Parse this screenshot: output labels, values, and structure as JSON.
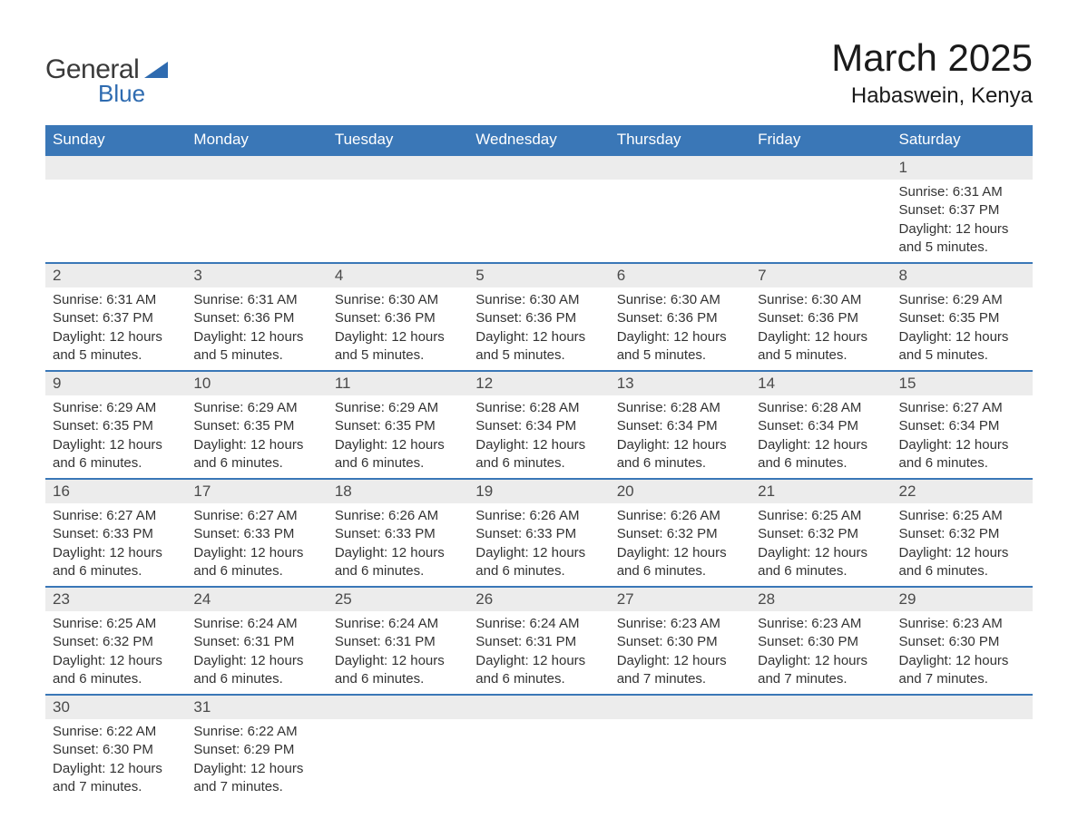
{
  "logo": {
    "line1": "General",
    "line2": "Blue"
  },
  "title": "March 2025",
  "location": "Habaswein, Kenya",
  "header_bg": "#3a77b7",
  "header_fg": "#ffffff",
  "daynum_bg": "#ececec",
  "row_border": "#3a77b7",
  "text_color": "#333333",
  "weekdays": [
    "Sunday",
    "Monday",
    "Tuesday",
    "Wednesday",
    "Thursday",
    "Friday",
    "Saturday"
  ],
  "weeks": [
    [
      null,
      null,
      null,
      null,
      null,
      null,
      {
        "n": "1",
        "sr": "Sunrise: 6:31 AM",
        "ss": "Sunset: 6:37 PM",
        "dl": "Daylight: 12 hours and 5 minutes."
      }
    ],
    [
      {
        "n": "2",
        "sr": "Sunrise: 6:31 AM",
        "ss": "Sunset: 6:37 PM",
        "dl": "Daylight: 12 hours and 5 minutes."
      },
      {
        "n": "3",
        "sr": "Sunrise: 6:31 AM",
        "ss": "Sunset: 6:36 PM",
        "dl": "Daylight: 12 hours and 5 minutes."
      },
      {
        "n": "4",
        "sr": "Sunrise: 6:30 AM",
        "ss": "Sunset: 6:36 PM",
        "dl": "Daylight: 12 hours and 5 minutes."
      },
      {
        "n": "5",
        "sr": "Sunrise: 6:30 AM",
        "ss": "Sunset: 6:36 PM",
        "dl": "Daylight: 12 hours and 5 minutes."
      },
      {
        "n": "6",
        "sr": "Sunrise: 6:30 AM",
        "ss": "Sunset: 6:36 PM",
        "dl": "Daylight: 12 hours and 5 minutes."
      },
      {
        "n": "7",
        "sr": "Sunrise: 6:30 AM",
        "ss": "Sunset: 6:36 PM",
        "dl": "Daylight: 12 hours and 5 minutes."
      },
      {
        "n": "8",
        "sr": "Sunrise: 6:29 AM",
        "ss": "Sunset: 6:35 PM",
        "dl": "Daylight: 12 hours and 5 minutes."
      }
    ],
    [
      {
        "n": "9",
        "sr": "Sunrise: 6:29 AM",
        "ss": "Sunset: 6:35 PM",
        "dl": "Daylight: 12 hours and 6 minutes."
      },
      {
        "n": "10",
        "sr": "Sunrise: 6:29 AM",
        "ss": "Sunset: 6:35 PM",
        "dl": "Daylight: 12 hours and 6 minutes."
      },
      {
        "n": "11",
        "sr": "Sunrise: 6:29 AM",
        "ss": "Sunset: 6:35 PM",
        "dl": "Daylight: 12 hours and 6 minutes."
      },
      {
        "n": "12",
        "sr": "Sunrise: 6:28 AM",
        "ss": "Sunset: 6:34 PM",
        "dl": "Daylight: 12 hours and 6 minutes."
      },
      {
        "n": "13",
        "sr": "Sunrise: 6:28 AM",
        "ss": "Sunset: 6:34 PM",
        "dl": "Daylight: 12 hours and 6 minutes."
      },
      {
        "n": "14",
        "sr": "Sunrise: 6:28 AM",
        "ss": "Sunset: 6:34 PM",
        "dl": "Daylight: 12 hours and 6 minutes."
      },
      {
        "n": "15",
        "sr": "Sunrise: 6:27 AM",
        "ss": "Sunset: 6:34 PM",
        "dl": "Daylight: 12 hours and 6 minutes."
      }
    ],
    [
      {
        "n": "16",
        "sr": "Sunrise: 6:27 AM",
        "ss": "Sunset: 6:33 PM",
        "dl": "Daylight: 12 hours and 6 minutes."
      },
      {
        "n": "17",
        "sr": "Sunrise: 6:27 AM",
        "ss": "Sunset: 6:33 PM",
        "dl": "Daylight: 12 hours and 6 minutes."
      },
      {
        "n": "18",
        "sr": "Sunrise: 6:26 AM",
        "ss": "Sunset: 6:33 PM",
        "dl": "Daylight: 12 hours and 6 minutes."
      },
      {
        "n": "19",
        "sr": "Sunrise: 6:26 AM",
        "ss": "Sunset: 6:33 PM",
        "dl": "Daylight: 12 hours and 6 minutes."
      },
      {
        "n": "20",
        "sr": "Sunrise: 6:26 AM",
        "ss": "Sunset: 6:32 PM",
        "dl": "Daylight: 12 hours and 6 minutes."
      },
      {
        "n": "21",
        "sr": "Sunrise: 6:25 AM",
        "ss": "Sunset: 6:32 PM",
        "dl": "Daylight: 12 hours and 6 minutes."
      },
      {
        "n": "22",
        "sr": "Sunrise: 6:25 AM",
        "ss": "Sunset: 6:32 PM",
        "dl": "Daylight: 12 hours and 6 minutes."
      }
    ],
    [
      {
        "n": "23",
        "sr": "Sunrise: 6:25 AM",
        "ss": "Sunset: 6:32 PM",
        "dl": "Daylight: 12 hours and 6 minutes."
      },
      {
        "n": "24",
        "sr": "Sunrise: 6:24 AM",
        "ss": "Sunset: 6:31 PM",
        "dl": "Daylight: 12 hours and 6 minutes."
      },
      {
        "n": "25",
        "sr": "Sunrise: 6:24 AM",
        "ss": "Sunset: 6:31 PM",
        "dl": "Daylight: 12 hours and 6 minutes."
      },
      {
        "n": "26",
        "sr": "Sunrise: 6:24 AM",
        "ss": "Sunset: 6:31 PM",
        "dl": "Daylight: 12 hours and 6 minutes."
      },
      {
        "n": "27",
        "sr": "Sunrise: 6:23 AM",
        "ss": "Sunset: 6:30 PM",
        "dl": "Daylight: 12 hours and 7 minutes."
      },
      {
        "n": "28",
        "sr": "Sunrise: 6:23 AM",
        "ss": "Sunset: 6:30 PM",
        "dl": "Daylight: 12 hours and 7 minutes."
      },
      {
        "n": "29",
        "sr": "Sunrise: 6:23 AM",
        "ss": "Sunset: 6:30 PM",
        "dl": "Daylight: 12 hours and 7 minutes."
      }
    ],
    [
      {
        "n": "30",
        "sr": "Sunrise: 6:22 AM",
        "ss": "Sunset: 6:30 PM",
        "dl": "Daylight: 12 hours and 7 minutes."
      },
      {
        "n": "31",
        "sr": "Sunrise: 6:22 AM",
        "ss": "Sunset: 6:29 PM",
        "dl": "Daylight: 12 hours and 7 minutes."
      },
      null,
      null,
      null,
      null,
      null
    ]
  ]
}
